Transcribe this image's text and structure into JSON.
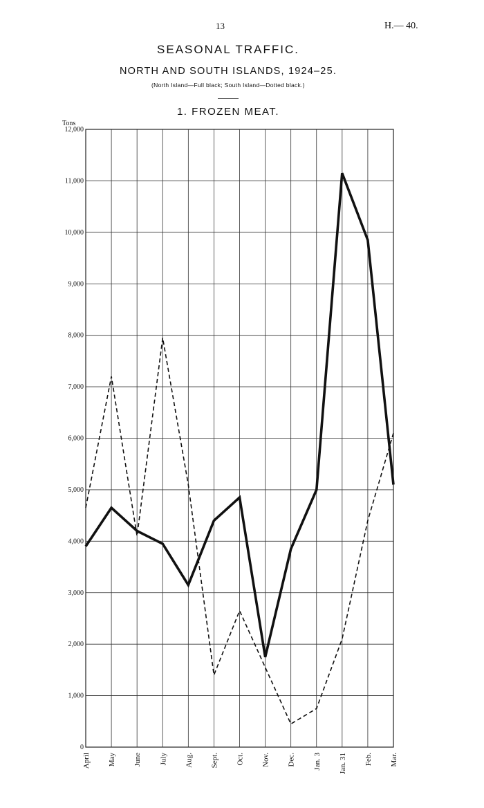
{
  "header": {
    "page_number": "13",
    "ref_code": "H.— 40.",
    "title": "SEASONAL TRAFFIC.",
    "subtitle": "NORTH AND SOUTH ISLANDS, 1924–25.",
    "legend_note": "(North Island—Full black; South Island—Dotted black.)",
    "chart_title": "1. FROZEN MEAT."
  },
  "chart_data": {
    "type": "line",
    "title": "1. FROZEN MEAT.",
    "ylabel": "Tons",
    "xlabel": "",
    "ylim": [
      0,
      12000
    ],
    "yticks": [
      0,
      1000,
      2000,
      3000,
      4000,
      5000,
      6000,
      7000,
      8000,
      9000,
      10000,
      11000,
      12000
    ],
    "ytick_labels": [
      "0",
      "1,000",
      "2,000",
      "3,000",
      "4,000",
      "5,000",
      "6,000",
      "7,000",
      "8,000",
      "9,000",
      "10,000",
      "11,000",
      "12,000"
    ],
    "categories": [
      "April",
      "May",
      "June",
      "July",
      "Aug.",
      "Sept.",
      "Oct.",
      "Nov.",
      "Dec.",
      "Jan. 3",
      "Jan. 31",
      "Feb.",
      "Mar."
    ],
    "grid": true,
    "series": [
      {
        "style": "solid",
        "color": "#111111",
        "values": [
          3900,
          4650,
          4200,
          3950,
          3150,
          4400,
          4850,
          1750,
          3850,
          5000,
          11150,
          9850,
          5100
        ]
      },
      {
        "style": "dashed",
        "color": "#111111",
        "values": [
          4650,
          7200,
          4100,
          7950,
          5100,
          1400,
          2650,
          1550,
          450,
          750,
          2100,
          4400,
          6100
        ]
      }
    ]
  }
}
